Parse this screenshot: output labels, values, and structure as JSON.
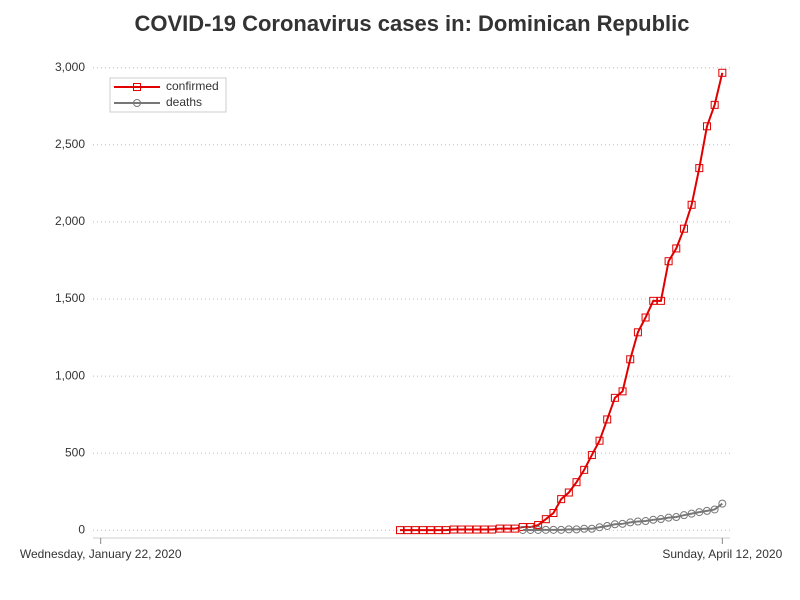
{
  "chart_data": {
    "type": "line",
    "title": "COVID-19 Coronavirus cases in: Dominican Republic",
    "x": [
      "2020-03-01",
      "2020-03-02",
      "2020-03-03",
      "2020-03-04",
      "2020-03-05",
      "2020-03-06",
      "2020-03-07",
      "2020-03-08",
      "2020-03-09",
      "2020-03-10",
      "2020-03-11",
      "2020-03-12",
      "2020-03-13",
      "2020-03-14",
      "2020-03-15",
      "2020-03-16",
      "2020-03-17",
      "2020-03-18",
      "2020-03-19",
      "2020-03-20",
      "2020-03-21",
      "2020-03-22",
      "2020-03-23",
      "2020-03-24",
      "2020-03-25",
      "2020-03-26",
      "2020-03-27",
      "2020-03-28",
      "2020-03-29",
      "2020-03-30",
      "2020-03-31",
      "2020-04-01",
      "2020-04-02",
      "2020-04-03",
      "2020-04-04",
      "2020-04-05",
      "2020-04-06",
      "2020-04-07",
      "2020-04-08",
      "2020-04-09",
      "2020-04-10",
      "2020-04-11",
      "2020-04-12"
    ],
    "series": [
      {
        "name": "confirmed",
        "color": "#e00000",
        "marker": "square",
        "values": [
          1,
          1,
          1,
          1,
          1,
          1,
          1,
          5,
          5,
          5,
          5,
          5,
          5,
          11,
          11,
          11,
          21,
          21,
          34,
          72,
          112,
          202,
          245,
          312,
          392,
          488,
          581,
          719,
          859,
          901,
          1109,
          1284,
          1380,
          1488,
          1488,
          1745,
          1828,
          1956,
          2111,
          2349,
          2620,
          2759,
          2967
        ]
      },
      {
        "name": "deaths",
        "color": "#777777",
        "marker": "circle",
        "values": [
          null,
          null,
          null,
          null,
          null,
          null,
          null,
          null,
          null,
          null,
          null,
          null,
          null,
          null,
          null,
          null,
          2,
          2,
          2,
          3,
          3,
          3,
          6,
          6,
          10,
          10,
          20,
          28,
          39,
          42,
          51,
          57,
          60,
          68,
          73,
          82,
          86,
          98,
          108,
          118,
          126,
          135,
          173
        ]
      }
    ],
    "xlim": [
      "2020-01-21",
      "2020-04-13"
    ],
    "xticks": [
      {
        "value": "2020-01-22",
        "label": "Wednesday, January 22, 2020"
      },
      {
        "value": "2020-04-12",
        "label": "Sunday, April 12, 2020"
      }
    ],
    "ylim": [
      -50,
      3050
    ],
    "yticks": [
      0,
      500,
      {
        "value": 1000,
        "label": "1,000"
      },
      {
        "value": 1500,
        "label": "1,500"
      },
      {
        "value": 2000,
        "label": "2,000"
      },
      {
        "value": 2500,
        "label": "2,500"
      },
      {
        "value": 3000,
        "label": "3,000"
      }
    ],
    "grid": true,
    "legend": "upper left"
  }
}
